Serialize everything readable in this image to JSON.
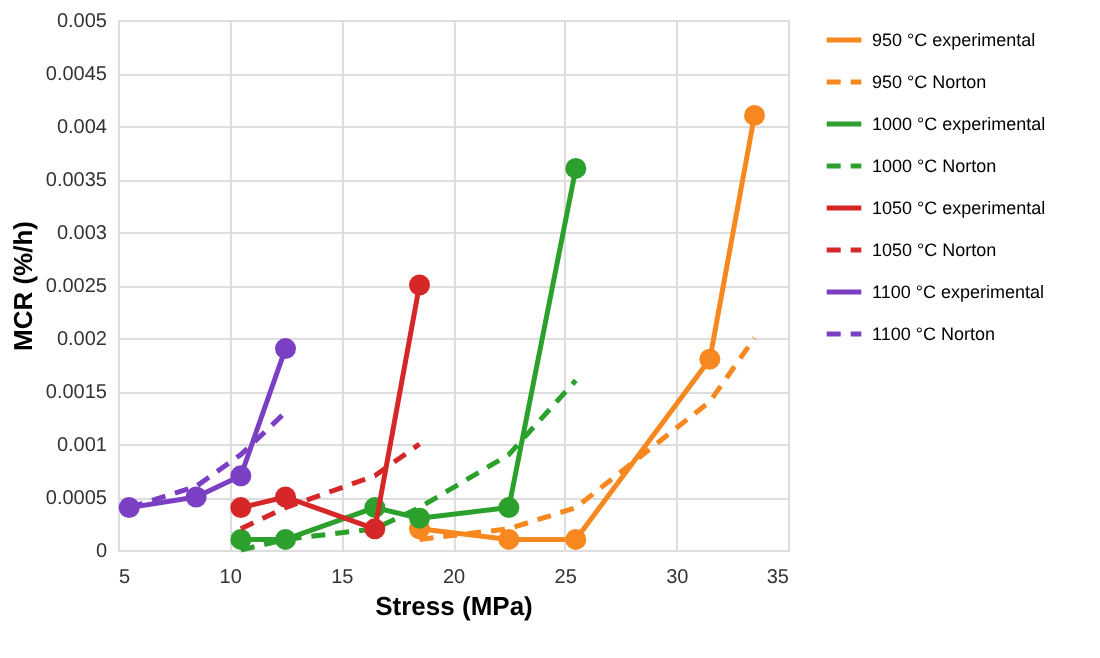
{
  "chart_data": {
    "type": "line",
    "xlabel": "Stress (MPa)",
    "ylabel": "MCR (%/h)",
    "xlim": [
      5,
      35
    ],
    "xticks": [
      5,
      10,
      15,
      20,
      25,
      30,
      35
    ],
    "ylim": [
      0,
      0.005
    ],
    "yticks": [
      0,
      0.0005,
      0.001,
      0.0015,
      0.002,
      0.0025,
      0.003,
      0.0035,
      0.004,
      0.0045,
      0.005
    ],
    "grid": true,
    "legend": "right",
    "series": [
      {
        "name": "950 °C experimental",
        "color": "#f7881f",
        "marker": "circle",
        "line_style": "solid",
        "x": [
          18.5,
          22.5,
          25.5,
          31.5,
          33.5
        ],
        "values": [
          0.0002,
          0.0001,
          0.0001,
          0.0018,
          0.0041
        ]
      },
      {
        "name": "950 °C Norton",
        "color": "#f7881f",
        "marker": "none",
        "line_style": "dashed",
        "x": [
          18.5,
          22.5,
          25.5,
          31.5,
          33.5
        ],
        "values": [
          0.0001,
          0.0002,
          0.0004,
          0.0014,
          0.002
        ]
      },
      {
        "name": "1000 °C experimental",
        "color": "#2ca02c",
        "marker": "circle",
        "line_style": "solid",
        "x": [
          10.5,
          12.5,
          16.5,
          18.5,
          22.5,
          25.5
        ],
        "values": [
          0.0001,
          0.0001,
          0.0004,
          0.0003,
          0.0004,
          0.0036
        ]
      },
      {
        "name": "1000 °C Norton",
        "color": "#2ca02c",
        "marker": "none",
        "line_style": "dashed",
        "x": [
          10.5,
          12.5,
          16.5,
          18.5,
          22.5,
          25.5
        ],
        "values": [
          0,
          0.0001,
          0.0002,
          0.0004,
          0.0009,
          0.0016
        ]
      },
      {
        "name": "1050 °C experimental",
        "color": "#d62728",
        "marker": "circle",
        "line_style": "solid",
        "x": [
          10.5,
          12.5,
          16.5,
          18.5
        ],
        "values": [
          0.0004,
          0.0005,
          0.0002,
          0.0025
        ]
      },
      {
        "name": "1050 °C Norton",
        "color": "#d62728",
        "marker": "none",
        "line_style": "dashed",
        "x": [
          10.5,
          12.5,
          16.5,
          18.5
        ],
        "values": [
          0.0002,
          0.0004,
          0.0007,
          0.001
        ]
      },
      {
        "name": "1100 °C experimental",
        "color": "#7b3fc4",
        "marker": "circle",
        "line_style": "solid",
        "x": [
          5.5,
          8.5,
          10.5,
          12.5
        ],
        "values": [
          0.0004,
          0.0005,
          0.0007,
          0.0019
        ]
      },
      {
        "name": "1100 °C Norton",
        "color": "#7b3fc4",
        "marker": "none",
        "line_style": "dashed",
        "x": [
          5.5,
          8.5,
          10.5,
          12.5
        ],
        "values": [
          0.0004,
          0.0006,
          0.0009,
          0.0013
        ]
      }
    ]
  }
}
